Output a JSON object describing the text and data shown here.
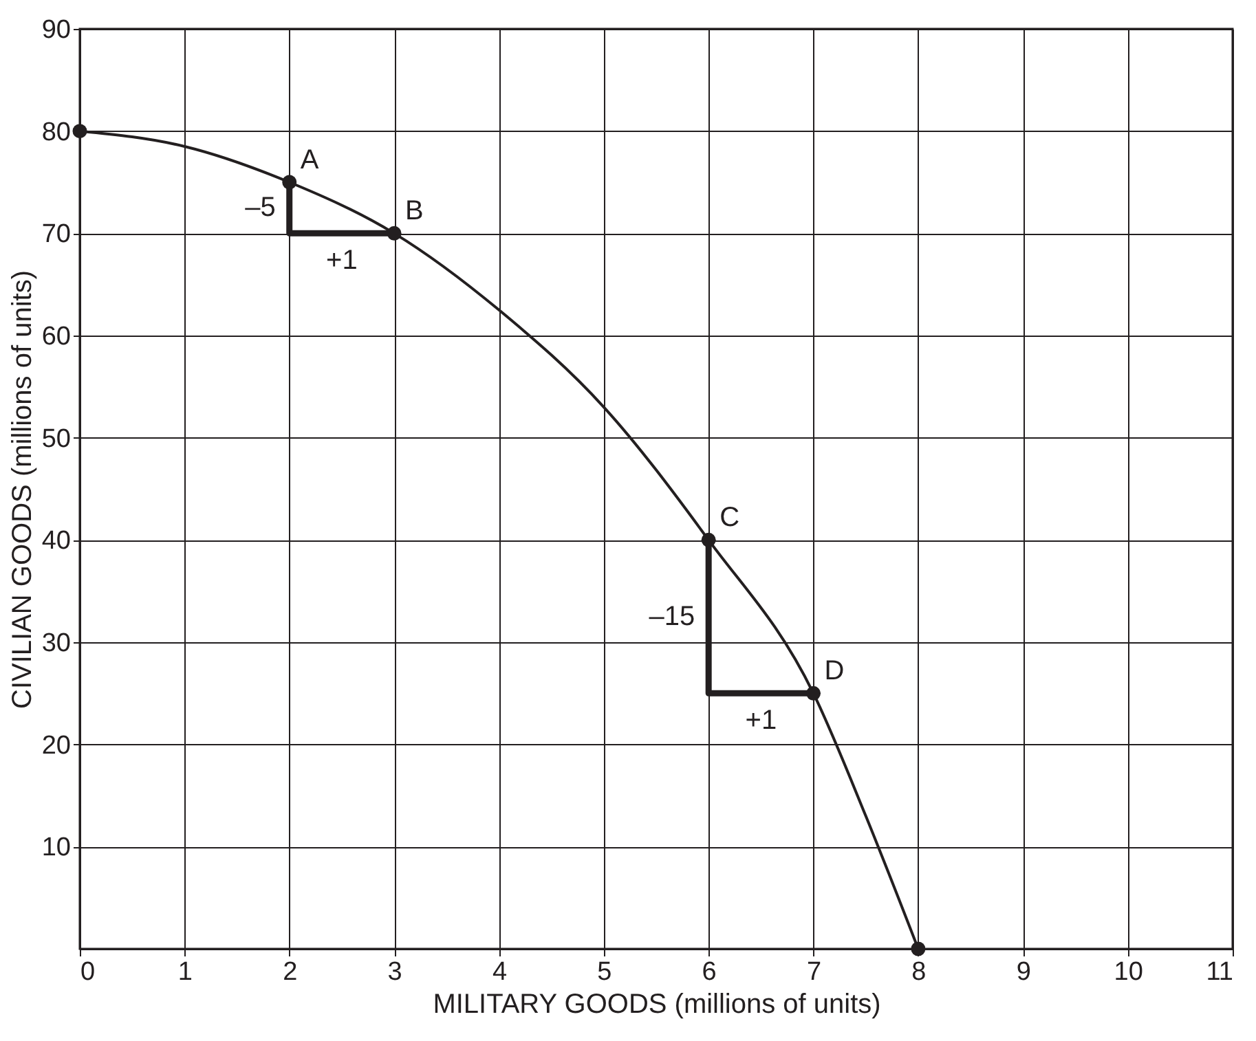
{
  "chart_data": {
    "type": "line",
    "xlabel": "MILITARY GOODS (millions of units)",
    "ylabel": "CIVILIAN GOODS (millions of units)",
    "xlim": [
      0,
      11
    ],
    "xticks": [
      0,
      1,
      2,
      3,
      4,
      5,
      6,
      7,
      8,
      9,
      10,
      11
    ],
    "ylim": [
      0,
      90
    ],
    "yticks": [
      10,
      20,
      30,
      40,
      50,
      60,
      70,
      80,
      90
    ],
    "grid": true,
    "legend": false,
    "series": [
      {
        "color": "#231f20",
        "x": [
          0,
          1,
          2,
          3,
          4,
          5,
          6,
          7,
          7.5,
          8
        ],
        "values": [
          80,
          78.5,
          75,
          70,
          62.5,
          53,
          40,
          25,
          13,
          0
        ]
      },
      {
        "color": "#231f20",
        "x": [
          2,
          2,
          3
        ],
        "values": [
          75,
          70,
          70
        ]
      },
      {
        "color": "#231f20",
        "x": [
          6,
          6,
          7
        ],
        "values": [
          40,
          25,
          25
        ]
      },
      {
        "type": "scatter",
        "marker": "circle",
        "color": "#231f20",
        "x": [
          0,
          2,
          3,
          6,
          7,
          8
        ],
        "values": [
          80,
          75,
          70,
          40,
          25,
          0
        ]
      }
    ],
    "annotations": [
      {
        "text": "A",
        "x": 2,
        "y": 75
      },
      {
        "text": "B",
        "x": 3,
        "y": 70
      },
      {
        "text": "C",
        "x": 6,
        "y": 40
      },
      {
        "text": "D",
        "x": 7,
        "y": 25
      },
      {
        "text": "–5",
        "x": 2,
        "y": 72.5
      },
      {
        "text": "+1",
        "x": 2.5,
        "y": 70
      },
      {
        "text": "–15",
        "x": 6,
        "y": 32.5
      },
      {
        "text": "+1",
        "x": 6.5,
        "y": 25
      }
    ]
  }
}
